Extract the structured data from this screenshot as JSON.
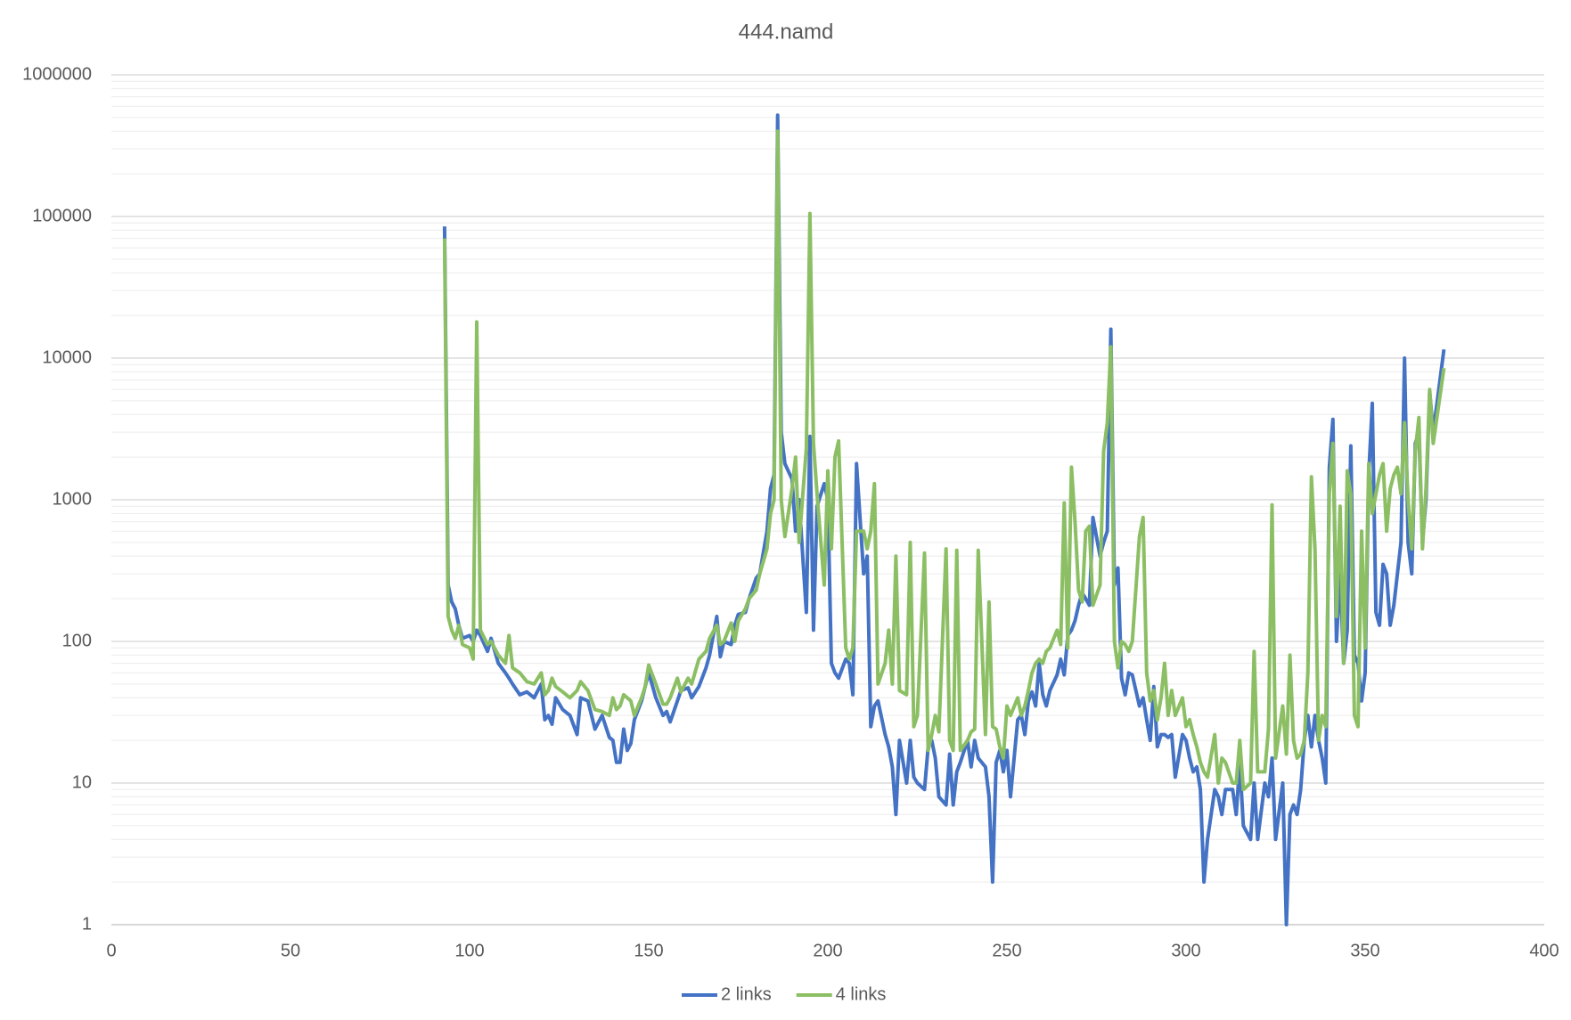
{
  "chart_data": {
    "type": "line",
    "title": "444.namd",
    "x": [
      93,
      94,
      95,
      96,
      97,
      98,
      100,
      101,
      102,
      103,
      105,
      106,
      108,
      110,
      111,
      112,
      114,
      116,
      118,
      120,
      121,
      122,
      123,
      124,
      126,
      128,
      130,
      131,
      133,
      135,
      137,
      139,
      140,
      141,
      142,
      143,
      144,
      145,
      146,
      148,
      149,
      150,
      152,
      154,
      155,
      156,
      158,
      159,
      161,
      162,
      164,
      166,
      167,
      169,
      170,
      171,
      173,
      174,
      175,
      177,
      178,
      180,
      181,
      183,
      184,
      185,
      186,
      187,
      188,
      190,
      191,
      192,
      194,
      195,
      196,
      197,
      199,
      200,
      201,
      202,
      203,
      205,
      206,
      207,
      208,
      210,
      211,
      212,
      213,
      214,
      216,
      217,
      218,
      219,
      220,
      222,
      223,
      224,
      225,
      227,
      228,
      229,
      230,
      231,
      233,
      234,
      235,
      236,
      237,
      239,
      240,
      241,
      242,
      244,
      245,
      246,
      247,
      248,
      249,
      250,
      251,
      253,
      254,
      255,
      256,
      257,
      258,
      259,
      260,
      261,
      262,
      264,
      265,
      266,
      267,
      268,
      269,
      270,
      271,
      272,
      273,
      274,
      276,
      277,
      278,
      279,
      280,
      281,
      282,
      283,
      284,
      285,
      287,
      288,
      289,
      290,
      291,
      292,
      293,
      294,
      295,
      296,
      297,
      299,
      300,
      301,
      302,
      303,
      304,
      305,
      306,
      308,
      309,
      310,
      311,
      313,
      314,
      315,
      316,
      318,
      319,
      320,
      322,
      323,
      324,
      325,
      327,
      328,
      329,
      330,
      331,
      332,
      333,
      334,
      335,
      336,
      337,
      338,
      339,
      340,
      341,
      342,
      343,
      344,
      345,
      346,
      347,
      348,
      349,
      350,
      351,
      352,
      353,
      354,
      355,
      356,
      357,
      358,
      359,
      360,
      361,
      362,
      363,
      364,
      365,
      366,
      367,
      368,
      369,
      372
    ],
    "series": [
      {
        "name": "2 links",
        "color": "#4472c4",
        "values": [
          85000,
          250,
          190,
          170,
          130,
          105,
          110,
          100,
          120,
          110,
          85,
          105,
          70,
          60,
          55,
          50,
          42,
          44,
          40,
          50,
          28,
          30,
          26,
          40,
          33,
          30,
          22,
          40,
          38,
          24,
          30,
          21,
          20,
          14,
          14,
          24,
          17,
          19,
          28,
          38,
          48,
          60,
          40,
          30,
          32,
          27,
          38,
          45,
          47,
          40,
          48,
          65,
          80,
          150,
          78,
          100,
          95,
          130,
          155,
          160,
          200,
          280,
          300,
          600,
          1200,
          1500,
          520000,
          3000,
          1800,
          1400,
          600,
          1000,
          160,
          2800,
          120,
          900,
          1300,
          1000,
          70,
          60,
          55,
          75,
          70,
          42,
          1800,
          300,
          400,
          25,
          35,
          38,
          22,
          18,
          13,
          6,
          20,
          10,
          20,
          11,
          10,
          9,
          18,
          20,
          15,
          8,
          7,
          16,
          7,
          12,
          14,
          20,
          13,
          20,
          15,
          13,
          8,
          2,
          14,
          17,
          12,
          17,
          8,
          28,
          30,
          22,
          38,
          44,
          35,
          70,
          42,
          35,
          45,
          58,
          75,
          58,
          110,
          120,
          140,
          180,
          220,
          200,
          180,
          750,
          400,
          500,
          600,
          16000,
          250,
          330,
          55,
          42,
          60,
          58,
          35,
          40,
          28,
          20,
          48,
          18,
          22,
          22,
          21,
          22,
          11,
          22,
          20,
          15,
          12,
          13,
          9,
          2,
          4,
          9,
          8,
          6,
          9,
          9,
          6,
          14,
          5,
          4,
          10,
          4,
          10,
          8,
          15,
          4,
          10,
          1,
          6,
          7,
          6,
          9,
          20,
          30,
          18,
          30,
          20,
          15,
          10,
          1700,
          3700,
          100,
          300,
          70,
          120,
          2400,
          80,
          70,
          38,
          60,
          1500,
          4800,
          160,
          130,
          350,
          300,
          130,
          180,
          300,
          500,
          10000,
          500,
          300,
          2500,
          3000,
          500,
          1000,
          5800,
          3000,
          11500
        ]
      },
      {
        "name": "4 links",
        "color": "#8cbf64",
        "values": [
          70000,
          150,
          120,
          105,
          130,
          95,
          90,
          75,
          18000,
          120,
          95,
          100,
          80,
          70,
          110,
          65,
          60,
          52,
          50,
          60,
          42,
          45,
          55,
          48,
          44,
          40,
          45,
          52,
          45,
          33,
          32,
          30,
          40,
          33,
          35,
          42,
          40,
          38,
          30,
          40,
          48,
          68,
          50,
          36,
          36,
          40,
          55,
          44,
          55,
          50,
          75,
          85,
          105,
          130,
          95,
          100,
          135,
          100,
          140,
          170,
          200,
          230,
          300,
          450,
          800,
          1000,
          400000,
          1000,
          550,
          1200,
          2000,
          500,
          2300,
          105000,
          2500,
          1100,
          250,
          1600,
          450,
          2000,
          2600,
          90,
          75,
          90,
          600,
          600,
          450,
          600,
          1300,
          50,
          70,
          120,
          50,
          400,
          45,
          42,
          500,
          25,
          30,
          420,
          17,
          22,
          30,
          23,
          450,
          20,
          17,
          440,
          17,
          20,
          23,
          24,
          440,
          22,
          190,
          25,
          24,
          18,
          15,
          35,
          30,
          40,
          30,
          35,
          45,
          60,
          70,
          75,
          70,
          85,
          90,
          120,
          95,
          950,
          90,
          1700,
          700,
          230,
          190,
          600,
          650,
          180,
          250,
          2200,
          3500,
          12000,
          100,
          65,
          100,
          95,
          85,
          100,
          550,
          750,
          60,
          38,
          45,
          28,
          40,
          70,
          30,
          45,
          30,
          40,
          25,
          28,
          22,
          18,
          14,
          12,
          11,
          22,
          10,
          15,
          14,
          10,
          10,
          20,
          9,
          10,
          85,
          12,
          12,
          24,
          920,
          15,
          35,
          16,
          80,
          20,
          15,
          16,
          20,
          60,
          1450,
          450,
          20,
          30,
          25,
          1100,
          2500,
          150,
          900,
          70,
          1600,
          1100,
          30,
          25,
          600,
          90,
          1800,
          800,
          1100,
          1500,
          1800,
          600,
          1200,
          1500,
          1700,
          1100,
          3500,
          1000,
          450,
          2200,
          3800,
          450,
          1200,
          6000,
          2500,
          8500
        ]
      }
    ],
    "xlim": [
      0,
      400
    ],
    "xticks": [
      0,
      50,
      100,
      150,
      200,
      250,
      300,
      350,
      400
    ],
    "ylim": [
      1,
      1000000
    ],
    "yticks": [
      1,
      10,
      100,
      1000,
      10000,
      100000,
      1000000
    ],
    "log_y": true,
    "grid": true,
    "minor_grid": true,
    "legend": "bottom"
  }
}
